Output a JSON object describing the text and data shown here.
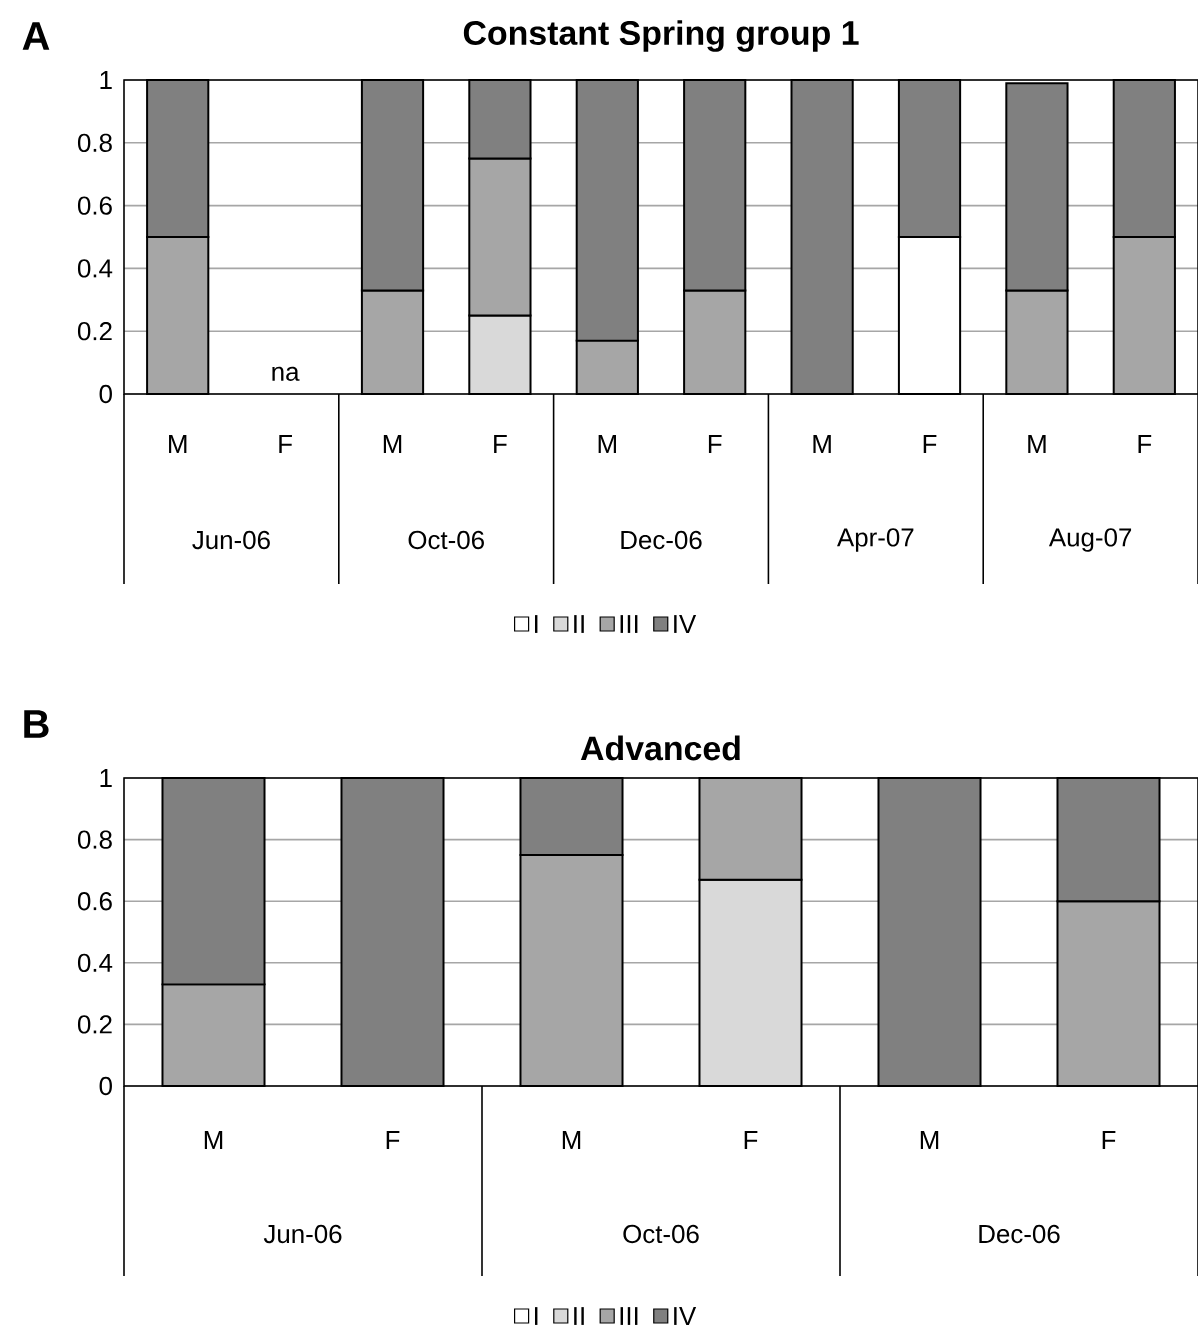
{
  "chart_data": [
    {
      "type": "bar",
      "stacked": true,
      "title": "Constant Spring group 1",
      "categories": [
        "M",
        "F",
        "M",
        "F",
        "M",
        "F",
        "M",
        "F",
        "M",
        "F"
      ],
      "series": [
        {
          "name": "I",
          "color": "#ffffff",
          "values": [
            0,
            null,
            0,
            0,
            0,
            0,
            0,
            0.5,
            0,
            0
          ]
        },
        {
          "name": "II",
          "color": "#d9d9d9",
          "values": [
            0,
            null,
            0,
            0.25,
            0,
            0,
            0,
            0,
            0,
            0
          ]
        },
        {
          "name": "III",
          "color": "#a6a6a6",
          "values": [
            0.5,
            null,
            0.33,
            0.5,
            0.17,
            0.33,
            0,
            0,
            0.33,
            0.5
          ]
        },
        {
          "name": "IV",
          "color": "#808080",
          "values": [
            0.5,
            null,
            0.67,
            0.25,
            0.83,
            0.67,
            1,
            0.5,
            0.66,
            0.5
          ]
        }
      ],
      "ylim": [
        0,
        1
      ],
      "yticks": [
        0,
        0.2,
        0.4,
        0.6,
        0.8,
        1
      ],
      "grid": "y",
      "legend": "bottom",
      "annotations": [
        "A",
        "Jun-06",
        "Oct-06",
        "Dec-06",
        "Apr-07",
        "Aug-07",
        "na"
      ]
    },
    {
      "type": "bar",
      "stacked": true,
      "title": "Advanced",
      "categories": [
        "M",
        "F",
        "M",
        "F",
        "M",
        "F"
      ],
      "series": [
        {
          "name": "I",
          "color": "#ffffff",
          "values": [
            0,
            0,
            0,
            0,
            0,
            0
          ]
        },
        {
          "name": "II",
          "color": "#d9d9d9",
          "values": [
            0,
            0,
            0,
            0.67,
            0,
            0
          ]
        },
        {
          "name": "III",
          "color": "#a6a6a6",
          "values": [
            0.33,
            0,
            0.75,
            0.33,
            0,
            0.6
          ]
        },
        {
          "name": "IV",
          "color": "#808080",
          "values": [
            0.67,
            1,
            0.25,
            0,
            1,
            0.4
          ]
        }
      ],
      "ylim": [
        0,
        1
      ],
      "yticks": [
        0,
        0.2,
        0.4,
        0.6,
        0.8,
        1
      ],
      "grid": "y",
      "legend": "bottom",
      "annotations": [
        "B",
        "Jun-06",
        "Oct-06",
        "Dec-06"
      ]
    }
  ]
}
